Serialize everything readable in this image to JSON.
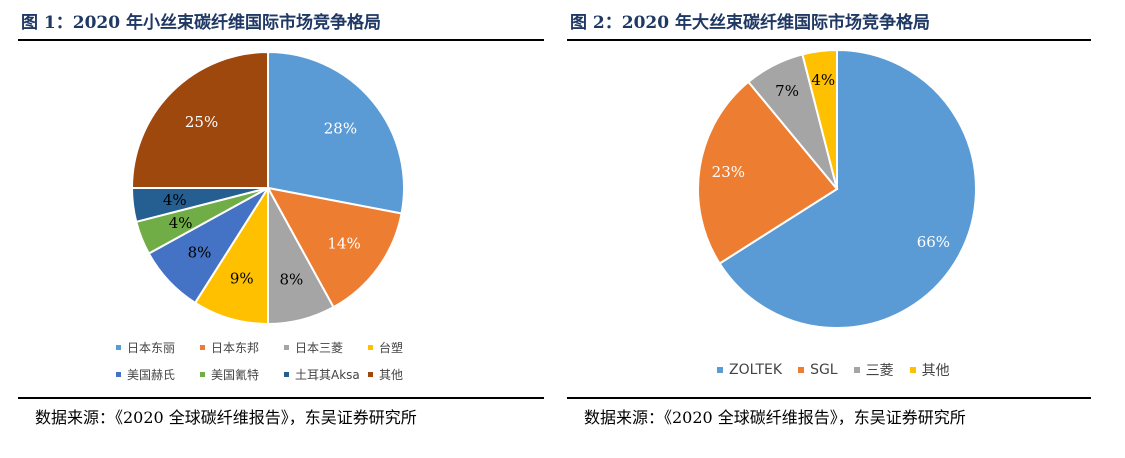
{
  "left": {
    "title": "图 1：2020 年小丝束碳纤维国际市场竞争格局",
    "source": "数据来源：《2020 全球碳纤维报告》，东吴证券研究所"
  },
  "right": {
    "title": "图 2：2020 年大丝束碳纤维国际市场竞争格局",
    "source": "数据来源：《2020 全球碳纤维报告》，东吴证券研究所"
  },
  "chart_data": [
    {
      "type": "pie",
      "title": "图 1：2020 年小丝束碳纤维国际市场竞争格局",
      "categories": [
        "日本东丽",
        "日本东邦",
        "日本三菱",
        "台塑",
        "美国赫氏",
        "美国氰特",
        "土耳其Aksa",
        "其他"
      ],
      "values": [
        28,
        14,
        8,
        9,
        8,
        4,
        4,
        25
      ],
      "labels": [
        "28%",
        "14%",
        "8%",
        "9%",
        "8%",
        "4%",
        "4%",
        "25%"
      ],
      "colors": [
        "#5b9bd5",
        "#ed7d31",
        "#a5a5a5",
        "#ffc000",
        "#4472c4",
        "#70ad47",
        "#255e91",
        "#9e480e"
      ],
      "label_colors": [
        "#ffffff",
        "#ffffff",
        "#000000",
        "#000000",
        "#000000",
        "#000000",
        "#000000",
        "#ffffff"
      ],
      "legend_position": "bottom"
    },
    {
      "type": "pie",
      "title": "图 2：2020 年大丝束碳纤维国际市场竞争格局",
      "categories": [
        "ZOLTEK",
        "SGL",
        "三菱",
        "其他"
      ],
      "values": [
        66,
        23,
        7,
        4
      ],
      "labels": [
        "66%",
        "23%",
        "7%",
        "4%"
      ],
      "colors": [
        "#5b9bd5",
        "#ed7d31",
        "#a5a5a5",
        "#ffc000"
      ],
      "label_colors": [
        "#ffffff",
        "#ffffff",
        "#000000",
        "#000000"
      ],
      "legend_position": "bottom"
    }
  ]
}
